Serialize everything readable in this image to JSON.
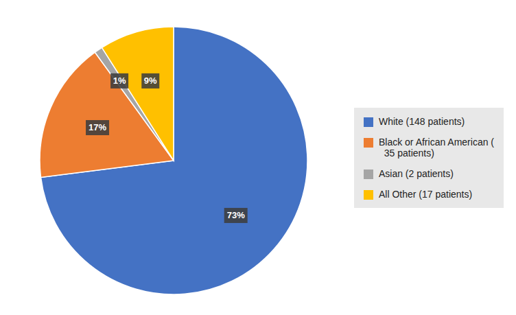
{
  "chart_data": {
    "type": "pie",
    "categories": [
      "White (148 patients)",
      "Black or African American (\n  35 patients)",
      "Asian (2 patients)",
      "All Other (17 patients)"
    ],
    "values": [
      73,
      17,
      1,
      9
    ],
    "value_labels": [
      "73%",
      "17%",
      "1%",
      "9%"
    ],
    "colors": [
      "#4472C4",
      "#ED7D31",
      "#A5A5A5",
      "#FFC000"
    ],
    "data_labels": true,
    "legend": "right"
  }
}
